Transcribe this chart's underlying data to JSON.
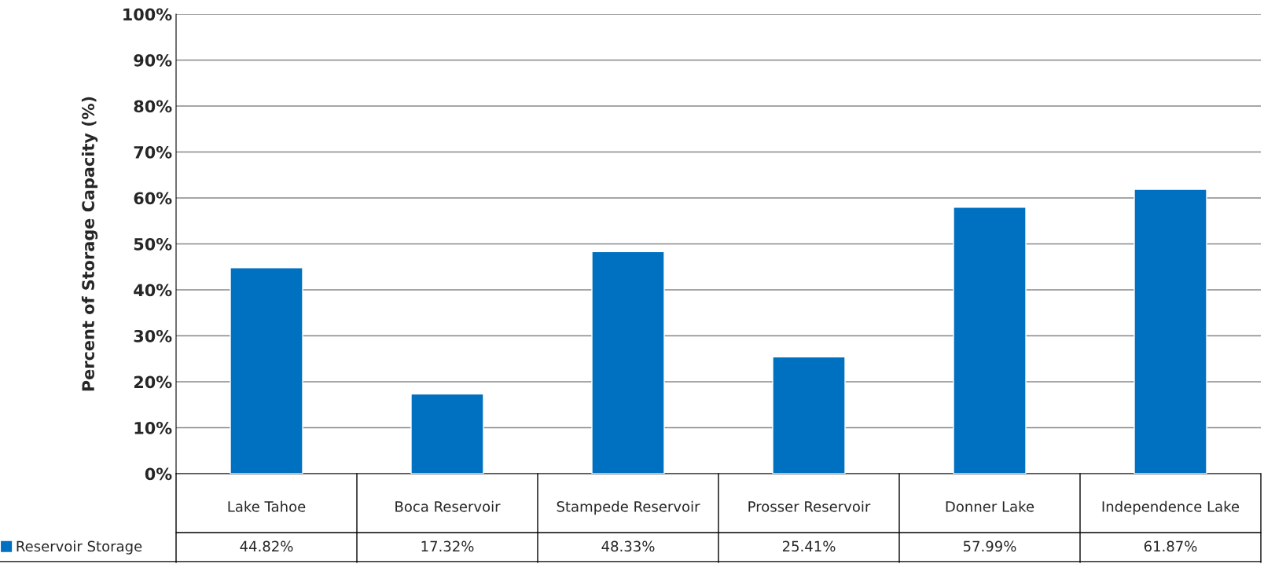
{
  "chart_data": {
    "type": "bar",
    "ylabel": "Percent of Storage Capacity (%)",
    "categories": [
      "Lake Tahoe",
      "Boca Reservoir",
      "Stampede Reservoir",
      "Prosser Reservoir",
      "Donner Lake",
      "Independence Lake"
    ],
    "series": [
      {
        "name": "Reservoir Storage",
        "color": "#0070c0",
        "values": [
          44.82,
          17.32,
          48.33,
          25.41,
          57.99,
          61.87
        ],
        "value_labels": [
          "44.82%",
          "17.32%",
          "48.33%",
          "25.41%",
          "57.99%",
          "61.87%"
        ]
      }
    ],
    "ylim": [
      0,
      100
    ],
    "yticks": [
      {
        "value": 0,
        "label": "0%"
      },
      {
        "value": 10,
        "label": "10%"
      },
      {
        "value": 20,
        "label": "20%"
      },
      {
        "value": 30,
        "label": "30%"
      },
      {
        "value": 40,
        "label": "40%"
      },
      {
        "value": 50,
        "label": "50%"
      },
      {
        "value": 60,
        "label": "60%"
      },
      {
        "value": 70,
        "label": "70%"
      },
      {
        "value": 80,
        "label": "80%"
      },
      {
        "value": 90,
        "label": "90%"
      },
      {
        "value": 100,
        "label": "100%"
      }
    ],
    "grid": "y",
    "legend": "bottom left"
  }
}
